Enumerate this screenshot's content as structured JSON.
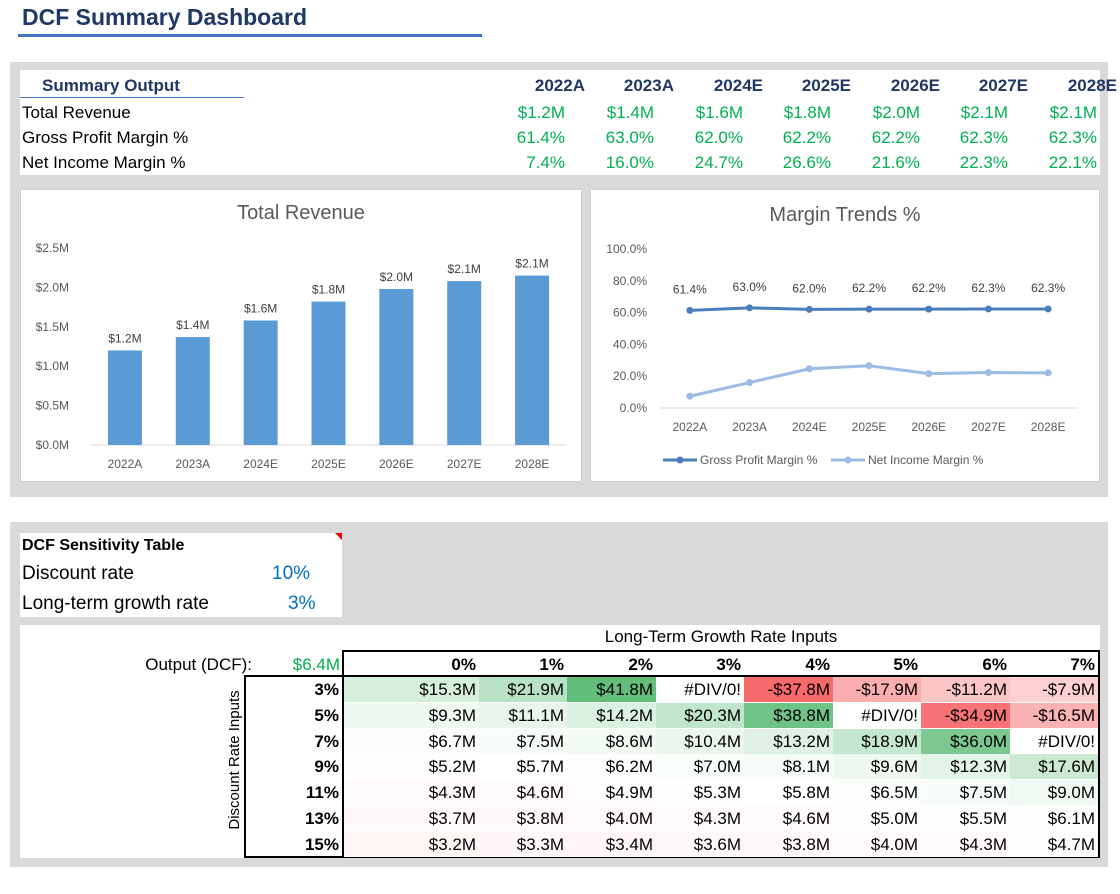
{
  "title": "DCF Summary Dashboard",
  "summary": {
    "header": "Summary Output",
    "years": [
      "2022A",
      "2023A",
      "2024E",
      "2025E",
      "2026E",
      "2027E",
      "2028E"
    ],
    "rows": [
      {
        "label": "Total Revenue",
        "values": [
          "$1.2M",
          "$1.4M",
          "$1.6M",
          "$1.8M",
          "$2.0M",
          "$2.1M",
          "$2.1M"
        ]
      },
      {
        "label": "Gross Profit Margin %",
        "values": [
          "61.4%",
          "63.0%",
          "62.0%",
          "62.2%",
          "62.2%",
          "62.3%",
          "62.3%"
        ]
      },
      {
        "label": "Net Income Margin %",
        "values": [
          "7.4%",
          "16.0%",
          "24.7%",
          "26.6%",
          "21.6%",
          "22.3%",
          "22.1%"
        ]
      }
    ]
  },
  "chart_data": [
    {
      "type": "bar",
      "title": "Total Revenue",
      "categories": [
        "2022A",
        "2023A",
        "2024E",
        "2025E",
        "2026E",
        "2027E",
        "2028E"
      ],
      "values": [
        1.2,
        1.37,
        1.58,
        1.82,
        1.98,
        2.08,
        2.15
      ],
      "data_labels": [
        "$1.2M",
        "$1.4M",
        "$1.6M",
        "$1.8M",
        "$2.0M",
        "$2.1M",
        "$2.1M"
      ],
      "yticks": [
        "$0.0M",
        "$0.5M",
        "$1.0M",
        "$1.5M",
        "$2.0M",
        "$2.5M"
      ],
      "ylim": [
        0,
        2.5
      ],
      "color": "#5b9bd5"
    },
    {
      "type": "line",
      "title": "Margin Trends %",
      "categories": [
        "2022A",
        "2023A",
        "2024E",
        "2025E",
        "2026E",
        "2027E",
        "2028E"
      ],
      "yticks": [
        "0.0%",
        "20.0%",
        "40.0%",
        "60.0%",
        "80.0%",
        "100.0%"
      ],
      "ylim": [
        0,
        100
      ],
      "legend": "bottom",
      "series": [
        {
          "name": "Gross Profit Margin %",
          "values": [
            61.4,
            63.0,
            62.0,
            62.2,
            62.2,
            62.3,
            62.3
          ],
          "labels": [
            "61.4%",
            "63.0%",
            "62.0%",
            "62.2%",
            "62.2%",
            "62.3%",
            "62.3%"
          ],
          "color": "#4a7ebb"
        },
        {
          "name": "Net Income Margin %",
          "values": [
            7.4,
            16.0,
            24.7,
            26.6,
            21.6,
            22.3,
            22.1
          ],
          "color": "#9dbbe3"
        }
      ]
    }
  ],
  "sensitivity": {
    "title": "DCF Sensitivity Table",
    "discount_label": "Discount rate",
    "discount_value": "10%",
    "growth_label": "Long-term growth rate",
    "growth_value": "3%",
    "col_title": "Long-Term Growth Rate Inputs",
    "row_title": "Discount Rate Inputs",
    "output_label": "Output (DCF):",
    "output_value": "$6.4M",
    "cols": [
      "0%",
      "1%",
      "2%",
      "3%",
      "4%",
      "5%",
      "6%",
      "7%"
    ],
    "rows": [
      "3%",
      "5%",
      "7%",
      "9%",
      "11%",
      "13%",
      "15%"
    ],
    "cells": [
      [
        "$15.3M",
        "$21.9M",
        "$41.8M",
        "#DIV/0!",
        "-$37.8M",
        "-$17.9M",
        "-$11.2M",
        "-$7.9M"
      ],
      [
        "$9.3M",
        "$11.1M",
        "$14.2M",
        "$20.3M",
        "$38.8M",
        "#DIV/0!",
        "-$34.9M",
        "-$16.5M"
      ],
      [
        "$6.7M",
        "$7.5M",
        "$8.6M",
        "$10.4M",
        "$13.2M",
        "$18.9M",
        "$36.0M",
        "#DIV/0!"
      ],
      [
        "$5.2M",
        "$5.7M",
        "$6.2M",
        "$7.0M",
        "$8.1M",
        "$9.6M",
        "$12.3M",
        "$17.6M"
      ],
      [
        "$4.3M",
        "$4.6M",
        "$4.9M",
        "$5.3M",
        "$5.8M",
        "$6.5M",
        "$7.5M",
        "$9.0M"
      ],
      [
        "$3.7M",
        "$3.8M",
        "$4.0M",
        "$4.3M",
        "$4.6M",
        "$5.0M",
        "$5.5M",
        "$6.1M"
      ],
      [
        "$3.2M",
        "$3.3M",
        "$3.4M",
        "$3.6M",
        "$3.8M",
        "$4.0M",
        "$4.3M",
        "$4.7M"
      ]
    ],
    "scale_colors": {
      "min": "#f8696b",
      "mid": "#ffffff",
      "max": "#63be7b"
    }
  }
}
